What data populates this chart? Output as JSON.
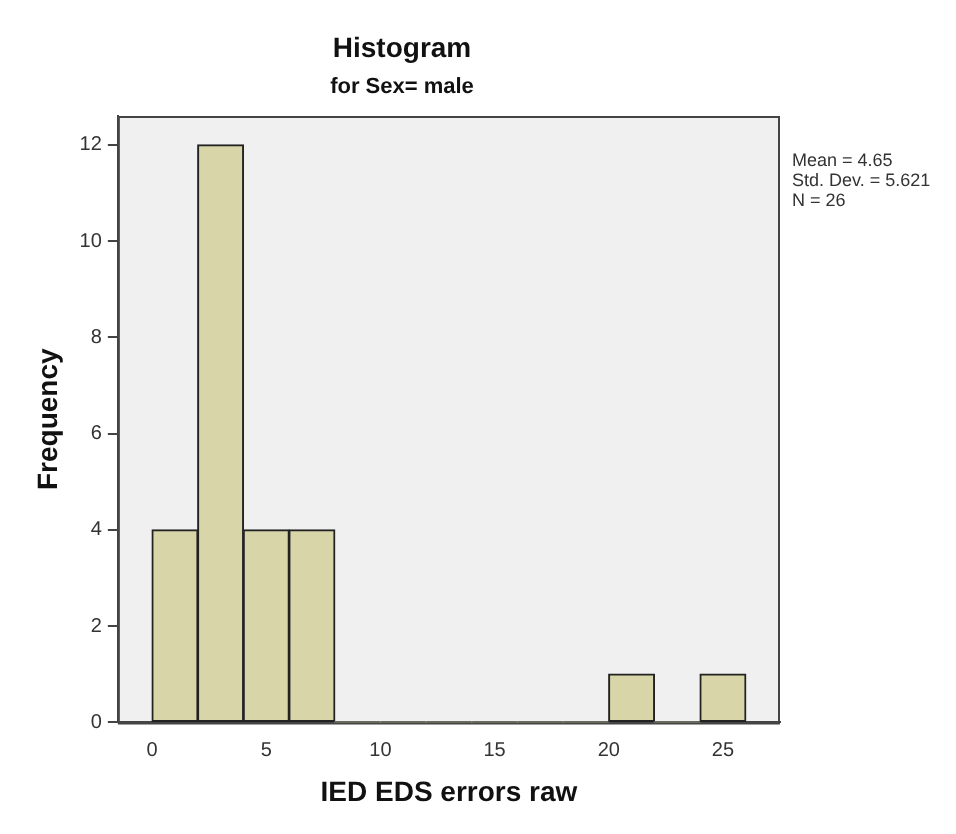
{
  "chart_data": {
    "type": "histogram",
    "title": "Histogram",
    "subtitle": "for Sex= male",
    "xlabel": "IED EDS errors raw",
    "ylabel": "Frequency",
    "bins": [
      0,
      2,
      4,
      6,
      8,
      10,
      12,
      14,
      16,
      18,
      20,
      22,
      24,
      26
    ],
    "values": [
      4,
      12,
      4,
      4,
      0,
      0,
      0,
      0,
      0,
      0,
      1,
      0,
      1
    ],
    "color": "#d8d5a8",
    "xlim": [
      -1.5,
      27.5
    ],
    "xticks": [
      0,
      5,
      10,
      15,
      20,
      25
    ],
    "ylim": [
      0,
      12.6
    ],
    "yticks": [
      0,
      2,
      4,
      6,
      8,
      10,
      12
    ],
    "grid": false,
    "annotations": [
      "Mean = 4.65",
      "Std. Dev. = 5.621",
      "N = 26"
    ]
  }
}
